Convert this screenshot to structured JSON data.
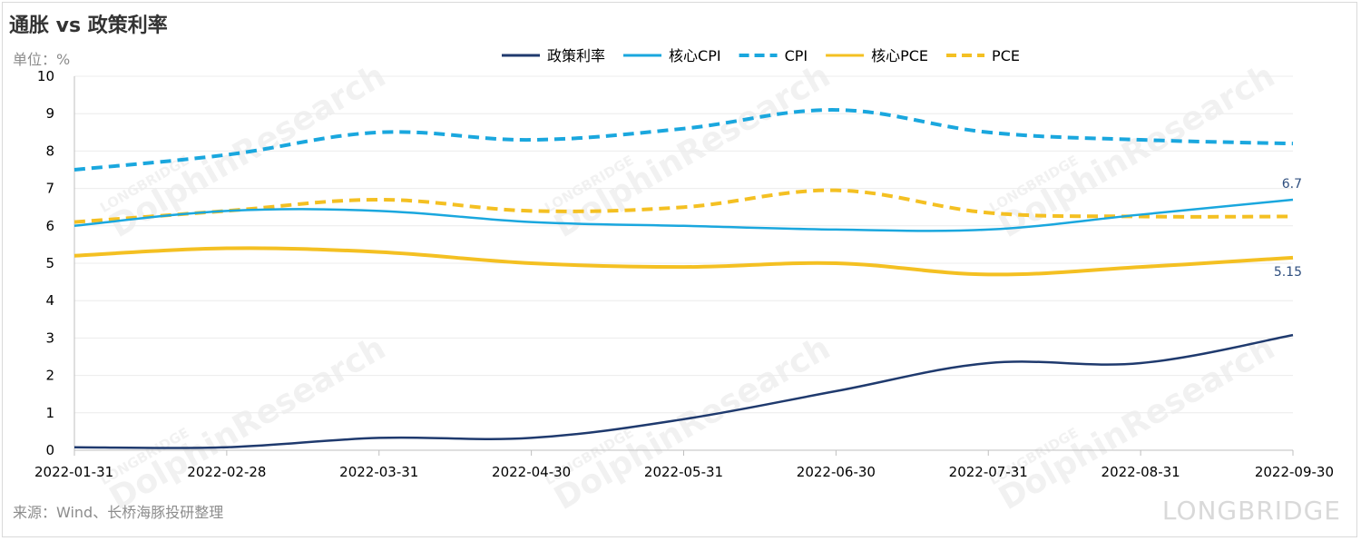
{
  "title": "通胀 vs 政策利率",
  "unit_label": "单位：%",
  "source": "来源：Wind、长桥海豚投研整理",
  "brand": "LONGBRIDGE",
  "watermark_main": "DolphinResearch",
  "watermark_sub": "LONGBRIDGE",
  "colors": {
    "policy": "#1f3a6e",
    "core_cpi": "#1aa7de",
    "cpi": "#1aa7de",
    "core_pce": "#f4c022",
    "pce": "#f4c022",
    "label": "#2f4f7f"
  },
  "chart_data": {
    "type": "line",
    "categories": [
      "2022-01-31",
      "2022-02-28",
      "2022-03-31",
      "2022-04-30",
      "2022-05-31",
      "2022-06-30",
      "2022-07-31",
      "2022-08-31",
      "2022-09-30"
    ],
    "ylim": [
      0,
      10
    ],
    "yticks": [
      0,
      1,
      2,
      3,
      4,
      5,
      6,
      7,
      8,
      9,
      10
    ],
    "legend_position": "top",
    "grid": true,
    "series": [
      {
        "name": "政策利率",
        "style": "solid",
        "color_key": "policy",
        "values": [
          0.08,
          0.08,
          0.33,
          0.33,
          0.83,
          1.58,
          2.33,
          2.33,
          3.08
        ]
      },
      {
        "name": "核心CPI",
        "style": "solid",
        "color_key": "core_cpi",
        "values": [
          6.0,
          6.4,
          6.4,
          6.1,
          6.0,
          5.9,
          5.9,
          6.3,
          6.7
        ]
      },
      {
        "name": "CPI",
        "style": "dashed",
        "color_key": "cpi",
        "values": [
          7.5,
          7.9,
          8.5,
          8.3,
          8.6,
          9.1,
          8.5,
          8.3,
          8.2
        ]
      },
      {
        "name": "核心PCE",
        "style": "solid",
        "color_key": "core_pce",
        "values": [
          5.2,
          5.4,
          5.3,
          5.0,
          4.9,
          5.0,
          4.7,
          4.9,
          5.15
        ]
      },
      {
        "name": "PCE",
        "style": "dashed",
        "color_key": "pce",
        "values": [
          6.1,
          6.4,
          6.7,
          6.4,
          6.5,
          6.95,
          6.35,
          6.25,
          6.25
        ]
      }
    ],
    "data_labels": [
      {
        "series": "核心CPI",
        "index": 8,
        "text": "6.7"
      },
      {
        "series": "核心PCE",
        "index": 8,
        "text": "5.15"
      }
    ]
  }
}
